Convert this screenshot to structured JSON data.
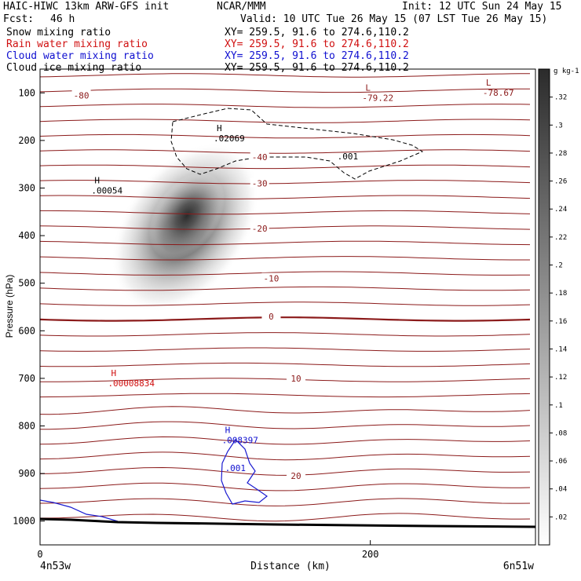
{
  "header": {
    "title": "HAIC-HIWC 13km ARW-GFS init",
    "center": "NCAR/MMM",
    "init": "Init: 12 UTC Sun 24 May 15",
    "fcst_label": "Fcst:",
    "fcst_value": "46 h",
    "valid": "Valid: 10 UTC Tue 26 May 15 (07 LST Tue 26 May 15)"
  },
  "legend": [
    {
      "name": "Snow mixing ratio",
      "xy": "XY= 259.5, 91.6 to 274.6,110.2",
      "color": "#000000"
    },
    {
      "name": "Rain water mixing ratio",
      "xy": "XY= 259.5, 91.6 to 274.6,110.2",
      "color": "#d01010"
    },
    {
      "name": "Cloud water mixing ratio",
      "xy": "XY= 259.5, 91.6 to 274.6,110.2",
      "color": "#1010d0"
    },
    {
      "name": "Cloud ice mixing ratio",
      "xy": "XY= 259.5, 91.6 to 274.6,110.2",
      "color": "#000000"
    }
  ],
  "chart_data": {
    "type": "cross-section",
    "xlabel": "Distance (km)",
    "ylabel": "Pressure (hPa)",
    "x_ticks": [
      0,
      200
    ],
    "xlim": [
      0,
      300
    ],
    "ylim": [
      1050,
      50
    ],
    "y_ticks": [
      100,
      200,
      300,
      400,
      500,
      600,
      700,
      800,
      900,
      1000
    ],
    "x_endpoints": [
      "4n53w",
      "6n51w"
    ],
    "colorbar": {
      "unit": "g kg-1",
      "ticks": [
        ".02",
        ".04",
        ".06",
        ".08",
        ".1",
        ".12",
        ".14",
        ".16",
        ".18",
        ".2",
        ".22",
        ".24",
        ".26",
        ".28",
        ".3",
        ".32"
      ]
    },
    "temperature_labels": [
      {
        "text": "-80",
        "x": 25,
        "p": 105
      },
      {
        "text": "-40",
        "x": 133,
        "p": 235
      },
      {
        "text": "-30",
        "x": 133,
        "p": 290
      },
      {
        "text": "-20",
        "x": 133,
        "p": 385
      },
      {
        "text": "-10",
        "x": 140,
        "p": 490
      },
      {
        "text": "0",
        "x": 140,
        "p": 570
      },
      {
        "text": "10",
        "x": 155,
        "p": 700
      },
      {
        "text": "20",
        "x": 155,
        "p": 905
      }
    ],
    "extrema": [
      {
        "kind": "L",
        "value": "-79.22",
        "x": 197,
        "p": 95,
        "color": "#8b1a1a"
      },
      {
        "kind": "L",
        "value": "-78.67",
        "x": 270,
        "p": 85,
        "color": "#8b1a1a"
      },
      {
        "kind": "H",
        "value": ".02069",
        "x": 107,
        "p": 180,
        "color": "#000000"
      },
      {
        "kind": "H",
        "value": ".00054",
        "x": 33,
        "p": 290,
        "color": "#000000"
      },
      {
        "kind": "H",
        "value": ".00008834",
        "x": 43,
        "p": 695,
        "color": "#d01010"
      },
      {
        "kind": "H",
        "value": ".008397",
        "x": 112,
        "p": 815,
        "color": "#1010d0"
      }
    ],
    "contour_labels": [
      {
        "text": ".001",
        "x": 180,
        "p": 240,
        "color": "#000000"
      },
      {
        "text": ".001",
        "x": 112,
        "p": 895,
        "color": "#1010d0"
      }
    ],
    "snow_max_value": 0.33
  }
}
